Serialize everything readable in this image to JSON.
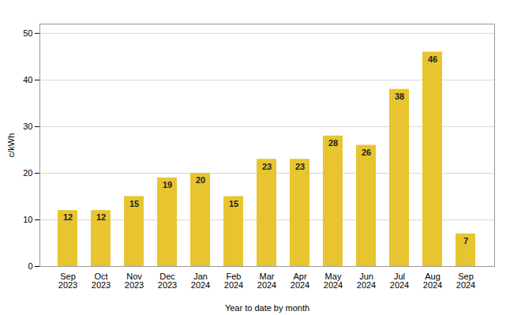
{
  "chart_data": {
    "type": "bar",
    "categories": [
      "Sep\n2023",
      "Oct\n2023",
      "Nov\n2023",
      "Dec\n2023",
      "Jan\n2024",
      "Feb\n2024",
      "Mar\n2024",
      "Apr\n2024",
      "May\n2024",
      "Jun\n2024",
      "Jul\n2024",
      "Aug\n2024",
      "Sep\n2024"
    ],
    "values": [
      12,
      12,
      15,
      19,
      20,
      15,
      23,
      23,
      28,
      26,
      38,
      46,
      7
    ],
    "color": "#E8C530",
    "xlabel": "Year to date by month",
    "ylabel": "c/kWh",
    "ylim": [
      0,
      52
    ],
    "yticks": [
      0,
      10,
      20,
      30,
      40,
      50
    ],
    "grid": true,
    "data_labels": true
  }
}
